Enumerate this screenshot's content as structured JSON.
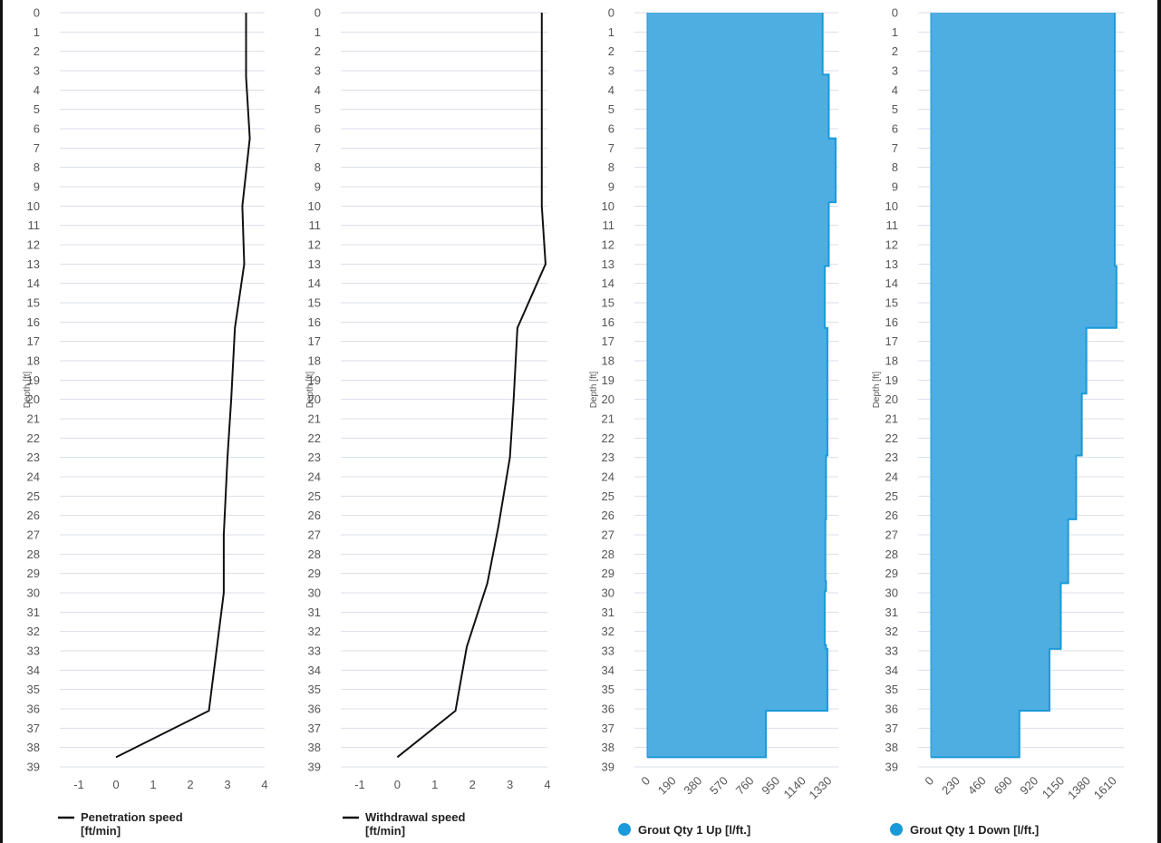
{
  "chart_data": [
    {
      "type": "line",
      "ylabel": "Depth [ft]",
      "y_inverted": true,
      "ylim": [
        0,
        39
      ],
      "y_ticks": [
        0,
        1,
        2,
        3,
        4,
        5,
        6,
        7,
        8,
        9,
        10,
        11,
        12,
        13,
        14,
        15,
        16,
        17,
        18,
        19,
        20,
        21,
        22,
        23,
        24,
        25,
        26,
        27,
        28,
        29,
        30,
        31,
        32,
        33,
        34,
        35,
        36,
        37,
        38,
        39
      ],
      "xlim": [
        -1,
        4
      ],
      "x_ticks": [
        "-1",
        "0",
        "1",
        "2",
        "3",
        "4"
      ],
      "grid": true,
      "legend_position": "bottom-left",
      "series": [
        {
          "name": "Penetration speed [ft/min]",
          "color": "#111111",
          "x": [
            3.5,
            3.5,
            3.6,
            3.4,
            3.45,
            3.2,
            3.1,
            3.0,
            2.9,
            2.9,
            2.5,
            0.0
          ],
          "depth": [
            0,
            3.3,
            6.5,
            10,
            13,
            16.3,
            20,
            23,
            27,
            30,
            36.1,
            38.5
          ]
        }
      ]
    },
    {
      "type": "line",
      "ylabel": "Depth [ft]",
      "y_inverted": true,
      "ylim": [
        0,
        39
      ],
      "y_ticks": [
        0,
        1,
        2,
        3,
        4,
        5,
        6,
        7,
        8,
        9,
        10,
        11,
        12,
        13,
        14,
        15,
        16,
        17,
        18,
        19,
        20,
        21,
        22,
        23,
        24,
        25,
        26,
        27,
        28,
        29,
        30,
        31,
        32,
        33,
        34,
        35,
        36,
        37,
        38,
        39
      ],
      "xlim": [
        -1,
        4
      ],
      "x_ticks": [
        "-1",
        "0",
        "1",
        "2",
        "3",
        "4"
      ],
      "grid": true,
      "legend_position": "bottom-left",
      "series": [
        {
          "name": "Withdrawal speed [ft/min]",
          "color": "#111111",
          "x": [
            3.85,
            3.85,
            3.85,
            3.85,
            3.95,
            3.2,
            3.1,
            3.0,
            2.7,
            2.4,
            1.85,
            1.55,
            0.0
          ],
          "depth": [
            0,
            3.3,
            6.5,
            10,
            13,
            16.3,
            20,
            23,
            26.5,
            29.5,
            32.8,
            36.1,
            38.5
          ]
        }
      ]
    },
    {
      "type": "area",
      "ylabel": "Depth [ft]",
      "y_inverted": true,
      "ylim": [
        0,
        39
      ],
      "y_ticks": [
        0,
        1,
        2,
        3,
        4,
        5,
        6,
        7,
        8,
        9,
        10,
        11,
        12,
        13,
        14,
        15,
        16,
        17,
        18,
        19,
        20,
        21,
        22,
        23,
        24,
        25,
        26,
        27,
        28,
        29,
        30,
        31,
        32,
        33,
        34,
        35,
        36,
        37,
        38,
        39
      ],
      "xlim": [
        0,
        1400
      ],
      "x_ticks": [
        "0",
        "190",
        "380",
        "570",
        "760",
        "950",
        "1140",
        "1330"
      ],
      "grid": true,
      "legend_position": "bottom-left",
      "series": [
        {
          "name": "Grout Qty 1 Up [l/ft.]",
          "color": "#1a9ad9",
          "fill": "#4eaee2",
          "x": [
            1285,
            1285,
            1330,
            1330,
            1380,
            1380,
            1330,
            1330,
            1300,
            1300,
            1320,
            1320,
            1310,
            1310,
            1305,
            1305,
            1310,
            1310,
            1300,
            1300,
            1310,
            1310,
            1320,
            1320,
            870,
            870
          ],
          "depth": [
            0,
            3.2,
            3.2,
            6.5,
            6.5,
            9.8,
            9.8,
            13.1,
            13.1,
            16.3,
            16.3,
            22.9,
            22.9,
            26.2,
            26.2,
            29.4,
            29.4,
            29.9,
            29.9,
            32.7,
            32.7,
            32.9,
            32.9,
            36.1,
            36.1,
            38.5
          ]
        }
      ]
    },
    {
      "type": "area",
      "ylabel": "Depth [ft]",
      "y_inverted": true,
      "ylim": [
        0,
        39
      ],
      "y_ticks": [
        0,
        1,
        2,
        3,
        4,
        5,
        6,
        7,
        8,
        9,
        10,
        11,
        12,
        13,
        14,
        15,
        16,
        17,
        18,
        19,
        20,
        21,
        22,
        23,
        24,
        25,
        26,
        27,
        28,
        29,
        30,
        31,
        32,
        33,
        34,
        35,
        36,
        37,
        38,
        39
      ],
      "xlim": [
        0,
        1700
      ],
      "x_ticks": [
        "0",
        "230",
        "460",
        "690",
        "920",
        "1150",
        "1380",
        "1610"
      ],
      "grid": true,
      "legend_position": "bottom-left",
      "series": [
        {
          "name": "Grout Qty 1 Down [l/ft.]",
          "color": "#1a9ad9",
          "fill": "#4eaee2",
          "x": [
            1620,
            1620,
            1635,
            1635,
            1370,
            1370,
            1330,
            1330,
            1280,
            1280,
            1210,
            1210,
            1145,
            1145,
            1045,
            1045,
            780,
            780,
            490,
            490
          ],
          "depth": [
            0,
            13.1,
            13.1,
            16.3,
            16.3,
            19.7,
            19.7,
            22.9,
            22.9,
            26.2,
            26.2,
            29.5,
            29.5,
            32.9,
            32.9,
            36.1,
            36.1,
            38.5,
            38.5,
            38.5
          ]
        }
      ]
    }
  ]
}
